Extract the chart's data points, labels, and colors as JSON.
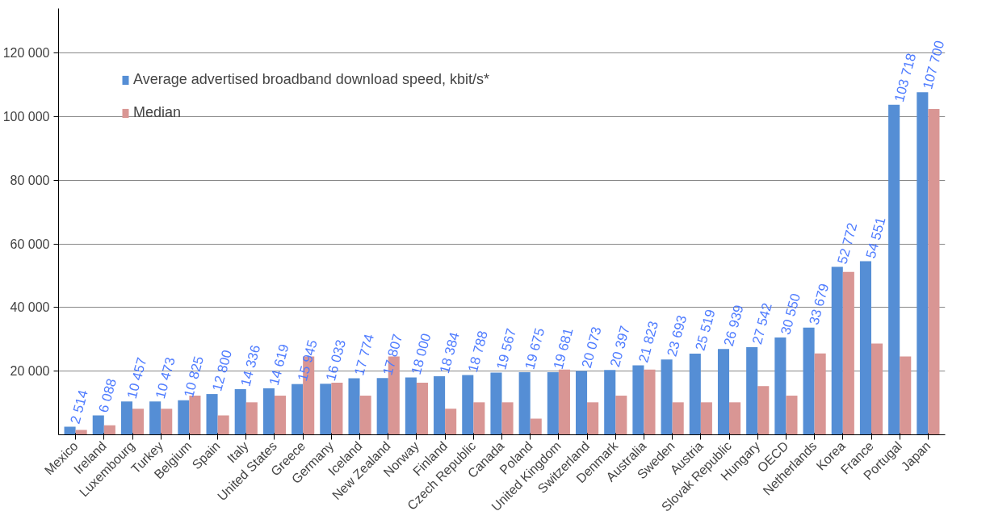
{
  "chart_data": {
    "type": "bar",
    "categories": [
      "Mexico",
      "Ireland",
      "Luxembourg",
      "Turkey",
      "Belgium",
      "Spain",
      "Italy",
      "United States",
      "Greece",
      "Germany",
      "Iceland",
      "New Zealand",
      "Norway",
      "Finland",
      "Czech Republic",
      "Canada",
      "Poland",
      "United Kingdom",
      "Switzerland",
      "Denmark",
      "Australia",
      "Sweden",
      "Austria",
      "Slovak Republic",
      "Hungary",
      "OECD",
      "Netherlands",
      "Korea",
      "France",
      "Portugal",
      "Japan"
    ],
    "series": [
      {
        "name": "Average advertised broadband download speed, kbit/s*",
        "color": "#558ed5",
        "values": [
          2514,
          6088,
          10457,
          10473,
          10825,
          12800,
          14336,
          14619,
          15945,
          16033,
          17774,
          17807,
          18000,
          18384,
          18788,
          19567,
          19675,
          19681,
          20073,
          20397,
          21823,
          23693,
          25519,
          26939,
          27542,
          30550,
          33679,
          52772,
          54551,
          103718,
          107700
        ],
        "value_labels": [
          "2 514",
          "6 088",
          "10 457",
          "10 473",
          "10 825",
          "12 800",
          "14 336",
          "14 619",
          "15 945",
          "16 033",
          "17 774",
          "17 807",
          "18 000",
          "18 384",
          "18 788",
          "19 567",
          "19 675",
          "19 681",
          "20 073",
          "20 397",
          "21 823",
          "23 693",
          "25 519",
          "26 939",
          "27 542",
          "30 550",
          "33 679",
          "52 772",
          "54 551",
          "103 718",
          "107 700"
        ]
      },
      {
        "name": "Median",
        "color": "#d99694",
        "values": [
          1500,
          3000,
          8200,
          8200,
          12300,
          6100,
          10200,
          12300,
          24600,
          16400,
          12300,
          24600,
          16400,
          8200,
          10200,
          10200,
          5100,
          20500,
          10200,
          12300,
          20500,
          10200,
          10200,
          10200,
          15300,
          12300,
          25600,
          51200,
          28700,
          24600,
          102400
        ]
      }
    ],
    "ylim": [
      0,
      134000
    ],
    "yticks": [
      {
        "value": 20000,
        "label": "20 000"
      },
      {
        "value": 40000,
        "label": "40 000"
      },
      {
        "value": 60000,
        "label": "60 000"
      },
      {
        "value": 80000,
        "label": "80 000"
      },
      {
        "value": 100000,
        "label": "100 000"
      },
      {
        "value": 120000,
        "label": "120 000"
      }
    ],
    "grid": "y",
    "legend": "top left"
  }
}
